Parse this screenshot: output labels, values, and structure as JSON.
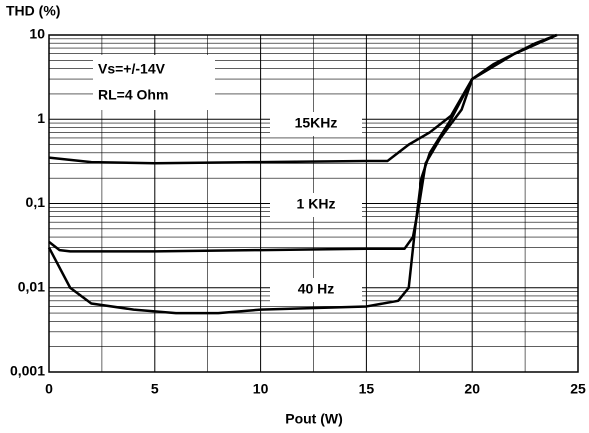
{
  "chart_data": {
    "type": "line",
    "y_label": "THD (%)",
    "x_label": "Pout (W)",
    "annotations": [
      "Vs=+/-14V",
      "RL=4 Ohm"
    ],
    "xlim": [
      0,
      25
    ],
    "xticks": [
      0,
      5,
      10,
      15,
      20,
      25
    ],
    "ylim": [
      0.001,
      10
    ],
    "log_y": true,
    "grid": true,
    "yticks": [
      {
        "value": 0.001,
        "label": "0,001"
      },
      {
        "value": 0.01,
        "label": "0,01"
      },
      {
        "value": 0.1,
        "label": "0,1"
      },
      1,
      10
    ],
    "series": [
      {
        "name": "15KHz",
        "color": "#000000",
        "x": [
          0,
          2,
          5,
          10,
          15,
          16,
          16.5,
          17,
          18,
          19,
          20,
          21,
          22,
          23,
          24
        ],
        "values": [
          0.35,
          0.31,
          0.3,
          0.31,
          0.32,
          0.32,
          0.4,
          0.5,
          0.7,
          1.1,
          3,
          4.5,
          6,
          8,
          10
        ]
      },
      {
        "name": "1 KHz",
        "color": "#000000",
        "x": [
          0,
          0.5,
          1,
          5,
          10,
          15,
          16.8,
          17.2,
          17.5,
          17.8,
          18.5,
          19.5,
          20,
          22,
          24
        ],
        "values": [
          0.035,
          0.028,
          0.027,
          0.027,
          0.028,
          0.029,
          0.029,
          0.04,
          0.1,
          0.3,
          0.6,
          1.3,
          3,
          6,
          10
        ]
      },
      {
        "name": "40 Hz",
        "color": "#000000",
        "x": [
          0,
          1,
          2,
          4,
          6,
          8,
          10,
          15,
          16.5,
          17,
          17.3,
          17.6,
          18,
          19,
          20,
          22,
          24
        ],
        "values": [
          0.03,
          0.01,
          0.0065,
          0.0055,
          0.005,
          0.005,
          0.0055,
          0.006,
          0.007,
          0.01,
          0.05,
          0.2,
          0.4,
          1.0,
          3,
          6,
          10
        ]
      }
    ]
  }
}
